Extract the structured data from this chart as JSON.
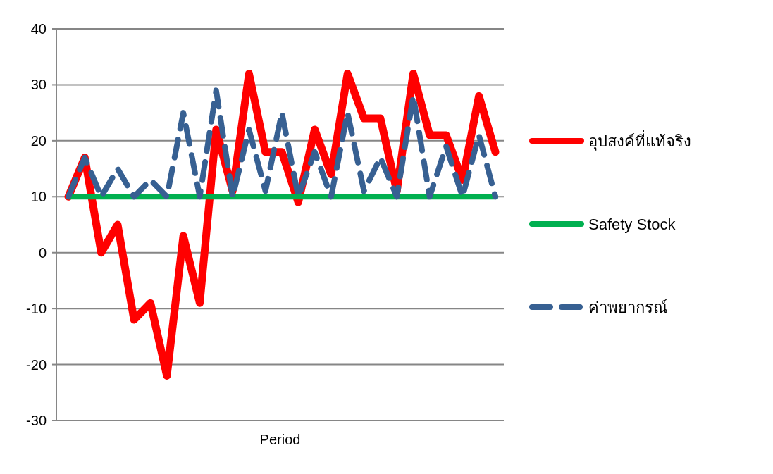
{
  "chart_data": {
    "type": "line",
    "xlabel": "Period",
    "categories": [
      null,
      null,
      null,
      null,
      null,
      null,
      null,
      null,
      null,
      null,
      null,
      null,
      null,
      null,
      null,
      null,
      null,
      null,
      null,
      null,
      null,
      null,
      null,
      null,
      null,
      null,
      null
    ],
    "series": [
      {
        "name": "อุปสงค์ที่แท้จริง",
        "color": "#ff0000",
        "line_style": "solid",
        "values": [
          10,
          17,
          0,
          5,
          -12,
          -9,
          -22,
          3,
          -9,
          22,
          11,
          32,
          18,
          18,
          9,
          22,
          14,
          32,
          24,
          24,
          11,
          32,
          21,
          21,
          13,
          28,
          18
        ]
      },
      {
        "name": "Safety Stock",
        "color": "#00b050",
        "line_style": "solid",
        "values": [
          10,
          10,
          10,
          10,
          10,
          10,
          10,
          10,
          10,
          10,
          10,
          10,
          10,
          10,
          10,
          10,
          10,
          10,
          10,
          10,
          10,
          10,
          10,
          10,
          10,
          10,
          10
        ]
      },
      {
        "name": "ค่าพยากรณ์",
        "color": "#376092",
        "line_style": "dashed",
        "values": [
          10,
          17,
          10,
          15,
          10,
          13,
          10,
          25,
          10,
          29,
          10,
          22,
          11,
          25,
          10,
          18,
          10,
          25,
          11,
          17,
          10,
          28,
          10,
          19,
          10,
          21,
          10
        ]
      }
    ],
    "ylim": [
      -30,
      40
    ],
    "yticks": [
      -30,
      -20,
      -10,
      0,
      10,
      20,
      30,
      40
    ],
    "grid": "y",
    "legend": "right"
  }
}
